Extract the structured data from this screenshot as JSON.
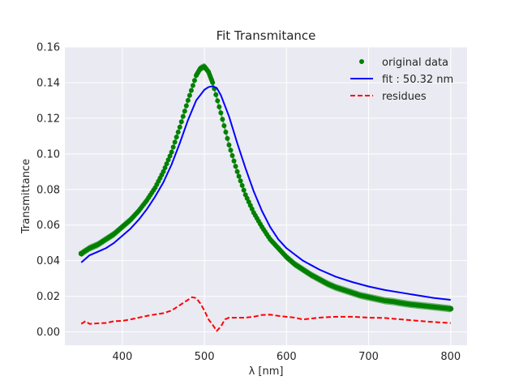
{
  "chart_data": {
    "type": "line",
    "title": "Fit Transmitance",
    "xlabel": "λ [nm]",
    "ylabel": "Transmittance",
    "xlim": [
      330,
      820
    ],
    "ylim": [
      -0.0075,
      0.16
    ],
    "xticks": [
      400,
      500,
      600,
      700,
      800
    ],
    "yticks": [
      0.0,
      0.02,
      0.04,
      0.06,
      0.08,
      0.1,
      0.12,
      0.14,
      0.16
    ],
    "xtick_labels": [
      "400",
      "500",
      "600",
      "700",
      "800"
    ],
    "ytick_labels": [
      "0.00",
      "0.02",
      "0.04",
      "0.06",
      "0.08",
      "0.10",
      "0.12",
      "0.14",
      "0.16"
    ],
    "grid": true,
    "background": "#eaeaf2",
    "legend_position": "top-right",
    "series": [
      {
        "name": "original data",
        "style": "markers",
        "color": "#008000",
        "band_color": "#008000",
        "x": [
          350,
          360,
          370,
          380,
          390,
          400,
          410,
          420,
          430,
          440,
          450,
          460,
          470,
          480,
          490,
          495,
          500,
          505,
          510,
          520,
          530,
          540,
          550,
          560,
          570,
          580,
          590,
          600,
          610,
          620,
          630,
          640,
          650,
          660,
          670,
          680,
          690,
          700,
          710,
          720,
          730,
          740,
          750,
          760,
          770,
          780,
          790,
          800
        ],
        "y": [
          0.044,
          0.047,
          0.049,
          0.052,
          0.055,
          0.059,
          0.063,
          0.068,
          0.074,
          0.081,
          0.09,
          0.101,
          0.115,
          0.13,
          0.144,
          0.148,
          0.149,
          0.146,
          0.14,
          0.123,
          0.105,
          0.09,
          0.077,
          0.067,
          0.059,
          0.052,
          0.047,
          0.042,
          0.038,
          0.035,
          0.032,
          0.0295,
          0.027,
          0.025,
          0.0235,
          0.022,
          0.0205,
          0.0195,
          0.0185,
          0.0175,
          0.017,
          0.0162,
          0.0155,
          0.015,
          0.0145,
          0.014,
          0.0135,
          0.013
        ],
        "band_half_width": 0.002
      },
      {
        "name": "fit : 50.32 nm",
        "style": "solid",
        "color": "#0000ff",
        "x": [
          350,
          360,
          370,
          380,
          390,
          400,
          410,
          420,
          430,
          440,
          450,
          460,
          470,
          480,
          490,
          500,
          505,
          510,
          515,
          520,
          530,
          540,
          550,
          560,
          570,
          580,
          590,
          600,
          620,
          640,
          660,
          680,
          700,
          720,
          740,
          760,
          780,
          800
        ],
        "y": [
          0.039,
          0.043,
          0.045,
          0.047,
          0.05,
          0.054,
          0.058,
          0.063,
          0.069,
          0.076,
          0.084,
          0.094,
          0.106,
          0.119,
          0.13,
          0.136,
          0.1375,
          0.138,
          0.137,
          0.133,
          0.121,
          0.106,
          0.092,
          0.079,
          0.068,
          0.059,
          0.052,
          0.047,
          0.04,
          0.035,
          0.031,
          0.028,
          0.0255,
          0.0235,
          0.022,
          0.0205,
          0.019,
          0.018
        ]
      },
      {
        "name": "residues",
        "style": "dashed",
        "color": "#ff0000",
        "x": [
          350,
          355,
          360,
          370,
          380,
          390,
          400,
          410,
          420,
          430,
          440,
          450,
          460,
          470,
          480,
          485,
          490,
          495,
          500,
          505,
          510,
          515,
          520,
          525,
          530,
          540,
          550,
          560,
          570,
          580,
          590,
          600,
          610,
          620,
          630,
          640,
          660,
          680,
          700,
          720,
          740,
          760,
          780,
          800
        ],
        "y": [
          0.0045,
          0.006,
          0.0045,
          0.0048,
          0.005,
          0.006,
          0.0062,
          0.007,
          0.008,
          0.009,
          0.0098,
          0.0105,
          0.012,
          0.015,
          0.018,
          0.0195,
          0.019,
          0.016,
          0.012,
          0.007,
          0.004,
          0.0005,
          0.003,
          0.007,
          0.008,
          0.008,
          0.008,
          0.0085,
          0.0095,
          0.0097,
          0.009,
          0.0085,
          0.008,
          0.007,
          0.0075,
          0.008,
          0.0085,
          0.0085,
          0.008,
          0.0078,
          0.007,
          0.0062,
          0.0055,
          0.005
        ]
      }
    ]
  }
}
